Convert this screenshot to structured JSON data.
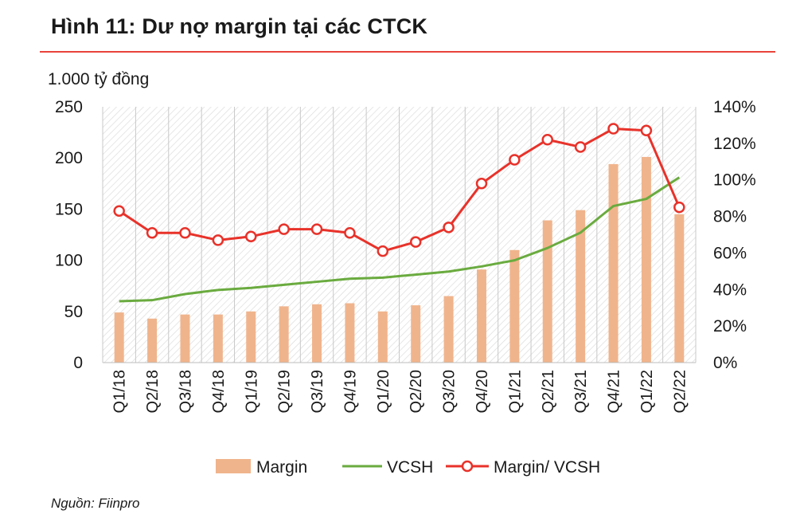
{
  "figure": {
    "title": "Hình 11: Dư nợ margin tại các CTCK",
    "unit_label": "1.000 tỷ đồng",
    "source": "Nguồn: Fiinpro"
  },
  "colors": {
    "title_rule": "#e8443a",
    "margin_bar": "#f0b48c",
    "vcsh_line": "#6aab3f",
    "ratio_line": "#e8322a",
    "plot_hatch": "#dcdcdc"
  },
  "chart_data": {
    "type": "bar",
    "categories": [
      "Q1/18",
      "Q2/18",
      "Q3/18",
      "Q4/18",
      "Q1/19",
      "Q2/19",
      "Q3/19",
      "Q4/19",
      "Q1/20",
      "Q2/20",
      "Q3/20",
      "Q4/20",
      "Q1/21",
      "Q2/21",
      "Q3/21",
      "Q4/21",
      "Q1/22",
      "Q2/22"
    ],
    "series": [
      {
        "name": "Margin",
        "type": "bar",
        "axis": "left",
        "values": [
          49,
          43,
          47,
          47,
          50,
          55,
          57,
          58,
          50,
          56,
          65,
          91,
          110,
          139,
          149,
          194,
          201,
          145
        ]
      },
      {
        "name": "VCSH",
        "type": "line",
        "axis": "left",
        "values": [
          60,
          61,
          67,
          71,
          73,
          76,
          79,
          82,
          83,
          86,
          89,
          94,
          100,
          112,
          127,
          153,
          160,
          181
        ]
      },
      {
        "name": "Margin/ VCSH",
        "type": "line",
        "marker": "circle",
        "axis": "right",
        "values": [
          83,
          71,
          71,
          67,
          69,
          73,
          73,
          71,
          61,
          66,
          74,
          98,
          111,
          122,
          118,
          128,
          127,
          85
        ]
      }
    ],
    "y_left": {
      "ylim": [
        0,
        250
      ],
      "ticks": [
        "0",
        "50",
        "100",
        "150",
        "200",
        "250"
      ]
    },
    "y_right": {
      "ylim": [
        0,
        140
      ],
      "ticks": [
        "0%",
        "20%",
        "40%",
        "60%",
        "80%",
        "100%",
        "120%",
        "140%"
      ]
    },
    "grid": true,
    "legend": {
      "placement": "bottom",
      "entries": [
        "Margin",
        "VCSH",
        "Margin/ VCSH"
      ]
    }
  }
}
